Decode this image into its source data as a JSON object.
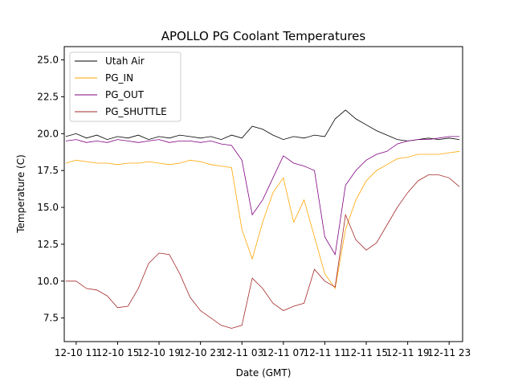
{
  "chart_data": {
    "type": "line",
    "title": "APOLLO PG Coolant Temperatures",
    "xlabel": "Date (GMT)",
    "ylabel": "Temperature (C)",
    "x_unit": "hours since 12-10 00:00",
    "xlim": [
      9.85,
      48.3
    ],
    "ylim": [
      5.9,
      25.9
    ],
    "xticks": [
      {
        "x": 11,
        "label": "12-10 11"
      },
      {
        "x": 15,
        "label": "12-10 15"
      },
      {
        "x": 19,
        "label": "12-10 19"
      },
      {
        "x": 23,
        "label": "12-10 23"
      },
      {
        "x": 27,
        "label": "12-11 03"
      },
      {
        "x": 31,
        "label": "12-11 07"
      },
      {
        "x": 35,
        "label": "12-11 11"
      },
      {
        "x": 39,
        "label": "12-11 15"
      },
      {
        "x": 43,
        "label": "12-11 19"
      },
      {
        "x": 47,
        "label": "12-11 23"
      }
    ],
    "yticks": [
      7.5,
      10.0,
      12.5,
      15.0,
      17.5,
      20.0,
      22.5,
      25.0
    ],
    "grid": false,
    "legend_position": "top-left",
    "x": [
      10,
      11,
      12,
      13,
      14,
      15,
      16,
      17,
      18,
      19,
      20,
      21,
      22,
      23,
      24,
      25,
      26,
      27,
      28,
      29,
      30,
      31,
      32,
      33,
      34,
      35,
      36,
      37,
      38,
      39,
      40,
      41,
      42,
      43,
      44,
      45,
      46,
      47,
      48
    ],
    "series": [
      {
        "name": "Utah Air",
        "color": "#000000",
        "values": [
          19.8,
          20.0,
          19.7,
          19.9,
          19.6,
          19.8,
          19.7,
          19.9,
          19.6,
          19.8,
          19.7,
          19.9,
          19.8,
          19.7,
          19.8,
          19.6,
          19.9,
          19.7,
          20.5,
          20.3,
          19.9,
          19.6,
          19.8,
          19.7,
          19.9,
          19.8,
          21.0,
          21.6,
          21.0,
          20.6,
          20.2,
          19.9,
          19.6,
          19.5,
          19.6,
          19.7,
          19.6,
          19.7,
          19.6
        ]
      },
      {
        "name": "PG_IN",
        "color": "#FFA500",
        "values": [
          18.0,
          18.2,
          18.1,
          18.0,
          18.0,
          17.9,
          18.0,
          18.0,
          18.1,
          18.0,
          17.9,
          18.0,
          18.2,
          18.1,
          17.9,
          17.8,
          17.7,
          13.5,
          11.5,
          14.0,
          16.0,
          17.0,
          14.0,
          15.5,
          13.0,
          10.5,
          9.5,
          13.5,
          15.5,
          16.8,
          17.5,
          17.9,
          18.3,
          18.4,
          18.6,
          18.6,
          18.6,
          18.7,
          18.8
        ]
      },
      {
        "name": "PG_OUT",
        "color": "#800080",
        "values": [
          19.5,
          19.6,
          19.4,
          19.5,
          19.4,
          19.6,
          19.5,
          19.4,
          19.5,
          19.6,
          19.4,
          19.5,
          19.5,
          19.4,
          19.5,
          19.3,
          19.2,
          18.2,
          14.5,
          15.5,
          17.0,
          18.5,
          18.0,
          17.8,
          17.5,
          13.0,
          11.8,
          16.5,
          17.5,
          18.2,
          18.6,
          18.8,
          19.3,
          19.5,
          19.6,
          19.6,
          19.7,
          19.8,
          19.8
        ]
      },
      {
        "name": "PG_SHUTTLE",
        "color": "#A52A2A",
        "values": [
          10.0,
          10.0,
          9.5,
          9.4,
          9.0,
          8.2,
          8.3,
          9.5,
          11.2,
          11.9,
          11.8,
          10.5,
          8.9,
          8.0,
          7.5,
          7.0,
          6.8,
          7.0,
          10.2,
          9.5,
          8.5,
          8.0,
          8.3,
          8.5,
          10.8,
          10.0,
          9.6,
          14.5,
          12.8,
          12.1,
          12.6,
          13.8,
          15.0,
          16.0,
          16.8,
          17.2,
          17.2,
          17.0,
          16.4
        ]
      }
    ]
  }
}
